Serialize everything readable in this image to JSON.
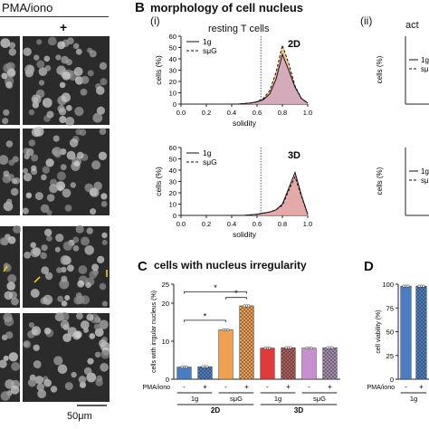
{
  "panel_a": {
    "header": "PMA/iono",
    "plus_label": "+",
    "scale_bar": "50μm",
    "arrow_color": "#ffd700"
  },
  "panel_b": {
    "letter": "B",
    "title": "morphology of cell nucleus",
    "sub_i": "(i)",
    "sub_ii": "(ii)",
    "sub_ii_title": "act",
    "top_title": "resting T cells"
  },
  "panel_c": {
    "letter": "C",
    "title": "cells with nucleus irregularity"
  },
  "panel_d": {
    "letter": "D"
  },
  "chart_data": [
    {
      "type": "area",
      "id": "B-i-2D",
      "tag": "2D",
      "title": "resting T cells",
      "xlabel": "solidity",
      "ylabel": "cells (%)",
      "xlim": [
        0,
        1.0
      ],
      "ylim": [
        0,
        60
      ],
      "xticks": [
        "0.0",
        "0.2",
        "0.4",
        "0.6",
        "0.8",
        "1.0"
      ],
      "yticks": [
        "0",
        "10",
        "20",
        "30",
        "40",
        "50",
        "60"
      ],
      "threshold_x": 0.63,
      "x": [
        0.4,
        0.45,
        0.5,
        0.55,
        0.6,
        0.65,
        0.7,
        0.75,
        0.8,
        0.85,
        0.9,
        0.95,
        1.0
      ],
      "series": [
        {
          "name": "1g",
          "values": [
            0,
            0,
            0.5,
            1,
            2,
            4,
            9,
            22,
            44,
            30,
            15,
            5,
            1
          ],
          "fill": "#c9a3c9",
          "line": "solid"
        },
        {
          "name": "sμG",
          "values": [
            0,
            0,
            0.5,
            1,
            2,
            5,
            12,
            28,
            52,
            36,
            16,
            5,
            1
          ],
          "fill": "#f5b06b",
          "line": "dashed"
        }
      ]
    },
    {
      "type": "area",
      "id": "B-i-3D",
      "tag": "3D",
      "title": "",
      "xlabel": "solidity",
      "ylabel": "cells (%)",
      "xlim": [
        0,
        1.0
      ],
      "ylim": [
        0,
        60
      ],
      "xticks": [
        "0.0",
        "0.2",
        "0.4",
        "0.6",
        "0.8",
        "1.0"
      ],
      "yticks": [
        "0",
        "10",
        "20",
        "30",
        "40",
        "50",
        "60"
      ],
      "threshold_x": 0.63,
      "x": [
        0.4,
        0.45,
        0.5,
        0.55,
        0.6,
        0.65,
        0.7,
        0.75,
        0.8,
        0.85,
        0.9,
        0.95,
        1.0
      ],
      "series": [
        {
          "name": "1g",
          "values": [
            0,
            0,
            0,
            0.5,
            1,
            2,
            3,
            5,
            10,
            24,
            38,
            18,
            1
          ],
          "fill": "#e3a3a3",
          "line": "solid"
        },
        {
          "name": "sμG",
          "values": [
            0,
            0,
            0,
            0.5,
            1,
            2,
            3,
            5,
            9,
            22,
            34,
            17,
            1
          ],
          "fill": "#e3a3a3",
          "line": "dashed"
        }
      ]
    },
    {
      "type": "bar",
      "id": "C",
      "title": "cells with nucleus irregularity",
      "ylabel": "cells with irrgular nucleus (%)",
      "ylim": [
        0,
        25
      ],
      "yticks": [
        "0",
        "10",
        "20",
        "25"
      ],
      "treatment_label": "PMA/iono",
      "treatments": [
        "-",
        "+",
        "-",
        "+",
        "-",
        "+",
        "-",
        "+"
      ],
      "groups_small": [
        "1g",
        "sμG",
        "1g",
        "sμG"
      ],
      "groups_big": [
        "2D",
        "3D"
      ],
      "values": [
        3.2,
        3.3,
        13.0,
        19.3,
        8.2,
        8.3,
        8.2,
        8.3
      ],
      "colors": [
        "#4a7cc4",
        "#4a7cc4",
        "#f0a050",
        "#f0a050",
        "#e03a3a",
        "#b05a5a",
        "#c88fd0",
        "#a68cb0"
      ],
      "hatched": [
        false,
        true,
        false,
        true,
        false,
        true,
        false,
        true
      ],
      "significance": [
        {
          "from": 0,
          "to": 3,
          "label": "*"
        },
        {
          "from": 2,
          "to": 3,
          "label": "*"
        },
        {
          "from": 0,
          "to": 2,
          "label": "*"
        }
      ]
    },
    {
      "type": "bar",
      "id": "D",
      "ylabel": "cell viability (%)",
      "ylim": [
        0,
        100
      ],
      "yticks": [
        "0",
        "25",
        "50",
        "75",
        "100"
      ],
      "treatment_label": "PMA/iono",
      "treatments": [
        "-",
        "+"
      ],
      "groups_small": [
        "1g"
      ],
      "values": [
        98,
        98
      ],
      "colors": [
        "#4a7cc4",
        "#4a7cc4"
      ],
      "hatched": [
        false,
        true
      ]
    }
  ]
}
